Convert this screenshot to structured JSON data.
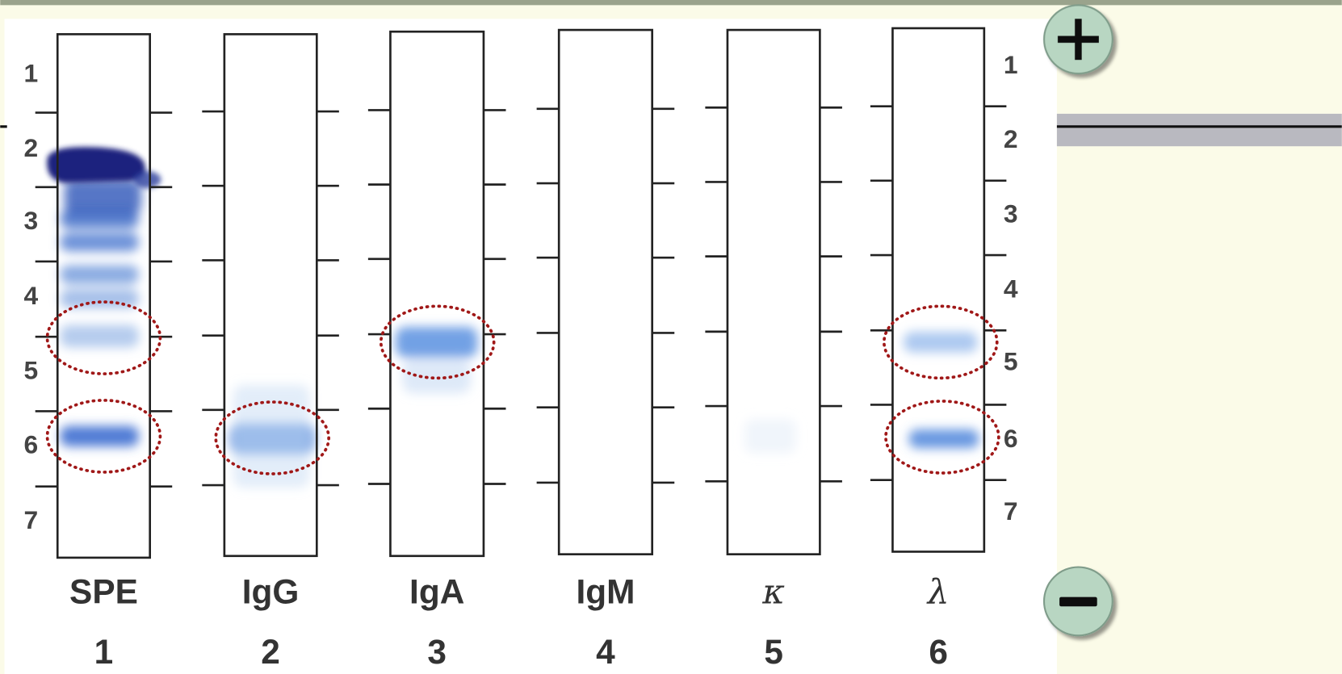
{
  "lanes": [
    {
      "label": "SPE",
      "number": 1
    },
    {
      "label": "IgG",
      "number": 2
    },
    {
      "label": "IgA",
      "number": 3
    },
    {
      "label": "IgM",
      "number": 4
    },
    {
      "label": "κ",
      "number": 5
    },
    {
      "label": "λ",
      "number": 6
    }
  ],
  "left_scale": [
    1,
    2,
    3,
    4,
    5,
    6,
    7
  ],
  "right_scale": [
    1,
    2,
    3,
    4,
    5,
    6,
    7
  ]
}
